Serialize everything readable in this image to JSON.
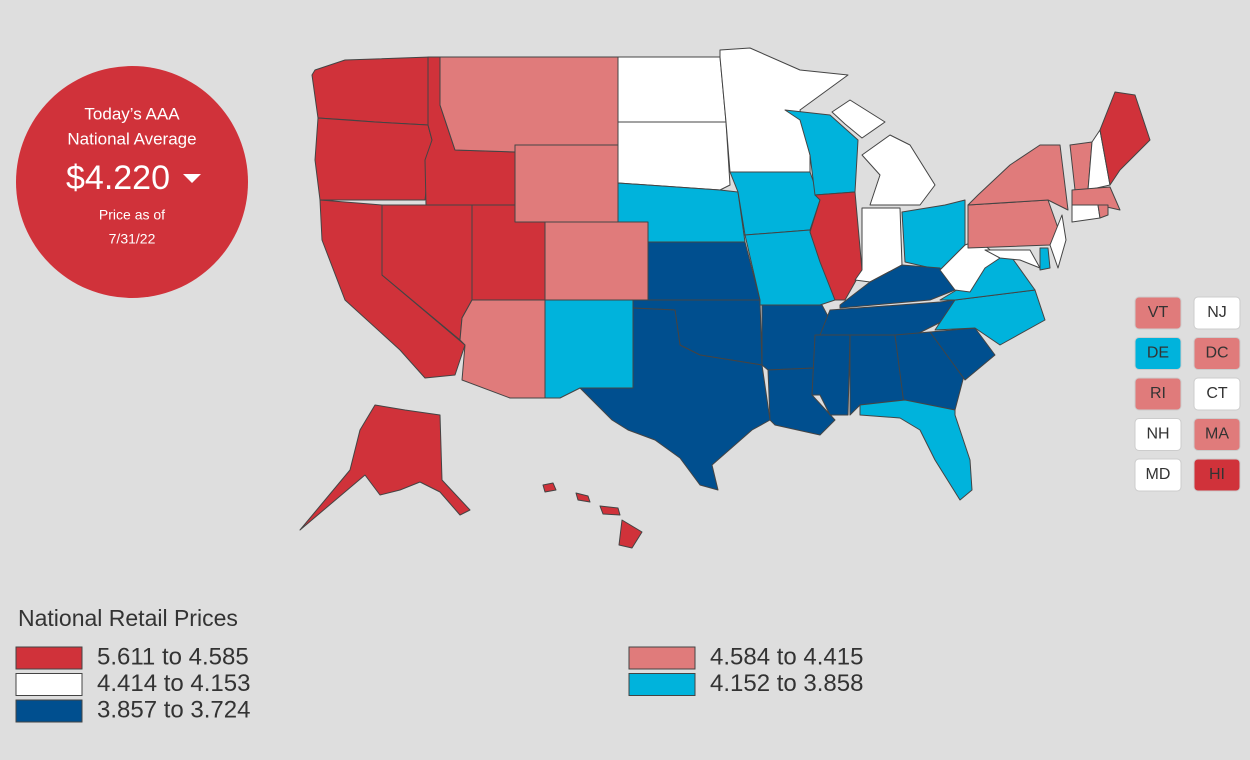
{
  "header": {
    "line1": "Today’s AAA",
    "line2": "National Average",
    "price": "$4.220",
    "note1": "Price as of",
    "note2": "7/31/22"
  },
  "legend": {
    "title": "National Retail Prices",
    "items": [
      {
        "label": "5.611 to 4.585",
        "color": "#d0323a"
      },
      {
        "label": "4.584 to 4.415",
        "color": "#e07b7b"
      },
      {
        "label": "4.414 to 4.153",
        "color": "#ffffff"
      },
      {
        "label": "4.152 to 3.858",
        "color": "#00b3dc"
      },
      {
        "label": "3.857 to 3.724",
        "color": "#004f8f"
      }
    ]
  },
  "small_states": [
    {
      "label": "VT",
      "color": "#e07b7b"
    },
    {
      "label": "NJ",
      "color": "#ffffff"
    },
    {
      "label": "DE",
      "color": "#00b3dc"
    },
    {
      "label": "DC",
      "color": "#e07b7b"
    },
    {
      "label": "RI",
      "color": "#e07b7b"
    },
    {
      "label": "CT",
      "color": "#ffffff"
    },
    {
      "label": "NH",
      "color": "#ffffff"
    },
    {
      "label": "MA",
      "color": "#e07b7b"
    },
    {
      "label": "MD",
      "color": "#ffffff"
    },
    {
      "label": "HI",
      "color": "#d0323a"
    }
  ]
}
